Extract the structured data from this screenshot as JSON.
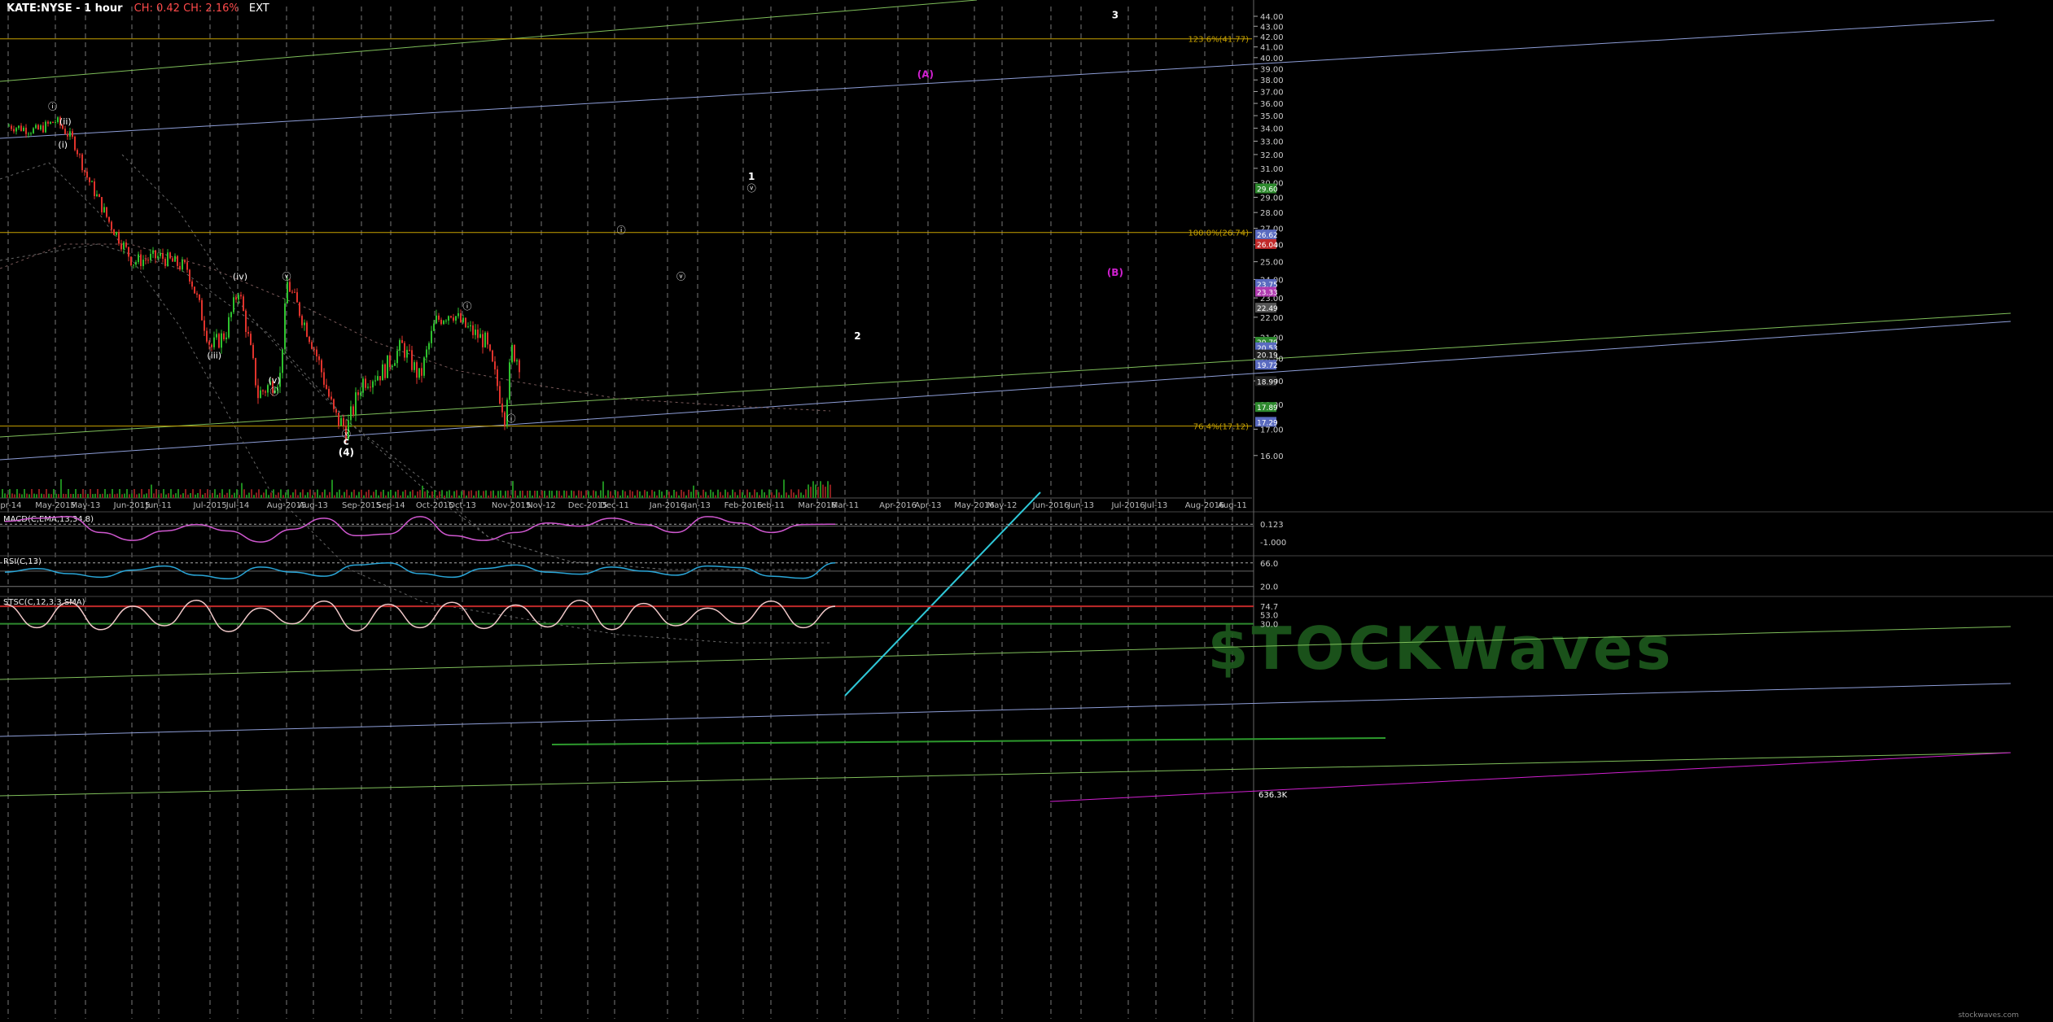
{
  "header": {
    "symbol": "KATE:NYSE - 1 hour",
    "change": "CH: 0.42  CH: 2.16%",
    "ext": "EXT",
    "watermark": "$TOCKWaves",
    "site": "stockwaves.com"
  },
  "colors": {
    "background": "#000000",
    "up": "#2ec22e",
    "down": "#e0332c",
    "fib": "#c8a200",
    "blueline": "#8e9ed8",
    "greenline": "#7fbf5a",
    "cyan": "#2fc8d8",
    "magenta": "#d020d0",
    "white": "#ffffff"
  },
  "chart_data": [
    {
      "type": "line",
      "title": "KATE:NYSE - 1 hour",
      "price_axis": {
        "ylim": [
          14.7,
          45.0
        ],
        "ticks": [
          "16.00",
          "17.00",
          "18.00",
          "19.00",
          "20.00",
          "21.00",
          "22.00",
          "23.00",
          "24.00",
          "25.00",
          "26.00",
          "27.00",
          "28.00",
          "29.00",
          "30.00",
          "31.00",
          "32.00",
          "33.00",
          "34.00",
          "35.00",
          "36.00",
          "37.00",
          "38.00",
          "39.00",
          "40.00",
          "41.00",
          "42.00",
          "43.00",
          "44.00"
        ],
        "scale": "log"
      },
      "time_axis": {
        "labels": [
          "Apr-14",
          "May-2015",
          "May-13",
          "Jun-2015",
          "Jun-11",
          "Jul-2015",
          "Jul-14",
          "Aug-2015",
          "Aug-13",
          "Sep-2015",
          "Sep-14",
          "Oct-2015",
          "Oct-13",
          "Nov-2015",
          "Nov-12",
          "Dec-2015",
          "Dec-11",
          "Jan-2016",
          "Jan-13",
          "Feb-2016",
          "Feb-11",
          "Mar-2016",
          "Mar-11",
          "Apr-2016",
          "Apr-13",
          "May-2016",
          "May-12",
          "Jun-2016",
          "Jun-13",
          "Jul-2016",
          "Jul-13",
          "Aug-2016",
          "Aug-11"
        ]
      },
      "price_series": {
        "name": "KATE close (approx.)",
        "x": [
          "Apr-14",
          "Apr-24",
          "May-01",
          "May-08",
          "May-13",
          "May-22",
          "Jun-01",
          "Jun-11",
          "Jun-22",
          "Jul-01",
          "Jul-08",
          "Jul-14",
          "Jul-22",
          "Jul-31",
          "Aug-03",
          "Aug-13",
          "Aug-21",
          "Aug-26",
          "Sep-01",
          "Sep-10",
          "Sep-18",
          "Sep-25",
          "Oct-01",
          "Oct-08",
          "Oct-13",
          "Oct-22",
          "Oct-30",
          "Nov-02",
          "Nov-05"
        ],
        "values": [
          34.2,
          33.8,
          34.6,
          33.0,
          30.5,
          27.5,
          25.0,
          25.3,
          24.6,
          20.5,
          21.2,
          23.5,
          18.4,
          19.2,
          23.8,
          20.5,
          17.5,
          17.0,
          19.0,
          19.4,
          20.6,
          19.1,
          21.8,
          22.3,
          21.6,
          20.8,
          17.6,
          20.4,
          19.7
        ]
      },
      "fib_levels": [
        {
          "label": "123.6%(41.77)",
          "value": 41.77
        },
        {
          "label": "100.0%(26.74)",
          "value": 26.74
        },
        {
          "label": "76.4%(17.12)",
          "value": 17.12
        }
      ],
      "price_tags": [
        {
          "text": "29.60",
          "value": 29.6,
          "color": "#2e8a2e"
        },
        {
          "text": "26.62",
          "value": 26.62,
          "color": "#5a6bc0"
        },
        {
          "text": "26.04",
          "value": 26.04,
          "color": "#c02a2a"
        },
        {
          "text": "23.75",
          "value": 23.75,
          "color": "#5a6bc0"
        },
        {
          "text": "23.33",
          "value": 23.33,
          "color": "#b03ab0"
        },
        {
          "text": "22.49",
          "value": 22.49,
          "color": "#555555"
        },
        {
          "text": "20.79",
          "value": 20.79,
          "color": "#2e8a2e"
        },
        {
          "text": "20.53",
          "value": 20.53,
          "color": "#5a6bc0"
        },
        {
          "text": "20.19",
          "value": 20.19,
          "color": "#222222"
        },
        {
          "text": "19.72",
          "value": 19.72,
          "color": "#5a6bc0"
        },
        {
          "text": "18.99",
          "value": 18.99,
          "color": "#222222"
        },
        {
          "text": "17.89",
          "value": 17.89,
          "color": "#2e8a2e"
        },
        {
          "text": "17.29",
          "value": 17.29,
          "color": "#5a6bc0"
        }
      ],
      "wave_labels": [
        {
          "text": "ⓘ",
          "x": "Apr-30",
          "y": 35.5,
          "color": "#ffffff"
        },
        {
          "text": "(ii)",
          "x": "May-05",
          "y": 34.3,
          "color": "#ffffff"
        },
        {
          "text": "(i)",
          "x": "May-04",
          "y": 32.5,
          "color": "#ffffff"
        },
        {
          "text": "(iii)",
          "x": "Jul-03",
          "y": 20.0,
          "color": "#ffffff"
        },
        {
          "text": "(iv)",
          "x": "Jul-15",
          "y": 24.0,
          "color": "#ffffff"
        },
        {
          "text": "(v)",
          "x": "Jul-29",
          "y": 18.9,
          "color": "#ffffff"
        },
        {
          "text": "ⓘ",
          "x": "Jul-29",
          "y": 18.4,
          "color": "#ffffff"
        },
        {
          "text": "ⓥ",
          "x": "Aug-03",
          "y": 24.0,
          "color": "#ffffff"
        },
        {
          "text": "ⓥ",
          "x": "Aug-26",
          "y": 16.7,
          "color": "#ffffff"
        },
        {
          "text": "c",
          "x": "Aug-26",
          "y": 16.4,
          "color": "#ffffff"
        },
        {
          "text": "(4)",
          "x": "Aug-26",
          "y": 16.0,
          "color": "#ffffff"
        },
        {
          "text": "ⓘ",
          "x": "Oct-15",
          "y": 22.4,
          "color": "#ffffff"
        },
        {
          "text": "ⓘ",
          "x": "Nov-02",
          "y": 17.3,
          "color": "#ffffff"
        },
        {
          "text": "ⓘ",
          "x": "Dec-14",
          "y": 26.7,
          "color": "#ffffff"
        },
        {
          "text": "ⓥ",
          "x": "Jan-08",
          "y": 24.0,
          "color": "#ffffff"
        },
        {
          "text": "1",
          "x": "Feb-04",
          "y": 30.2,
          "color": "#ffffff"
        },
        {
          "text": "ⓥ",
          "x": "Feb-04",
          "y": 29.4,
          "color": "#ffffff"
        },
        {
          "text": "2",
          "x": "Mar-16",
          "y": 20.9,
          "color": "#ffffff"
        },
        {
          "text": "(A)",
          "x": "Apr-12",
          "y": 38.2,
          "color": "#d020d0"
        },
        {
          "text": "3",
          "x": "Jun-26",
          "y": 43.8,
          "color": "#ffffff"
        },
        {
          "text": "(B)",
          "x": "Jun-26",
          "y": 24.2,
          "color": "#d020d0"
        }
      ],
      "volume": {
        "label": "636.3K"
      }
    },
    {
      "type": "line",
      "title": "MACD(C,EMA,13,34,8)",
      "series": [
        {
          "name": "MACD(C,EMA,13,34,8)",
          "values": [
            0.3,
            0.5,
            0.6,
            -0.4,
            -0.9,
            -0.3,
            0.1,
            -0.3,
            -1.0,
            -0.2,
            0.5,
            -0.6,
            -0.5,
            0.6,
            -0.6,
            -0.9,
            -0.4,
            0.2,
            0.0,
            0.5,
            0.1,
            -0.4,
            0.6,
            0.2,
            -0.4,
            0.1,
            0.123
          ]
        }
      ],
      "ticks": [
        "0.123",
        "-1.000"
      ],
      "current": "0.123"
    },
    {
      "type": "line",
      "title": "RSI(C,13)",
      "series": [
        {
          "name": "RSI(C,13)",
          "values": [
            48,
            55,
            45,
            38,
            52,
            60,
            42,
            35,
            58,
            48,
            40,
            62,
            66,
            45,
            38,
            55,
            62,
            48,
            44,
            58,
            50,
            42,
            60,
            57,
            40,
            36,
            66
          ]
        }
      ],
      "ticks": [
        "66.0",
        "20.0"
      ],
      "current": "66.0"
    },
    {
      "type": "line",
      "title": "STSC(C,12,3,3,SMA)",
      "series": [
        {
          "name": "STSC(C,12,3,3,SMA)",
          "values": [
            80,
            20,
            85,
            15,
            75,
            25,
            90,
            10,
            70,
            30,
            88,
            12,
            80,
            20,
            85,
            18,
            78,
            22,
            90,
            15,
            82,
            25,
            70,
            30,
            88,
            20,
            74.7
          ]
        }
      ],
      "ticks": [
        "74.7",
        "53.0",
        "30.0"
      ],
      "current": "74.7"
    }
  ]
}
